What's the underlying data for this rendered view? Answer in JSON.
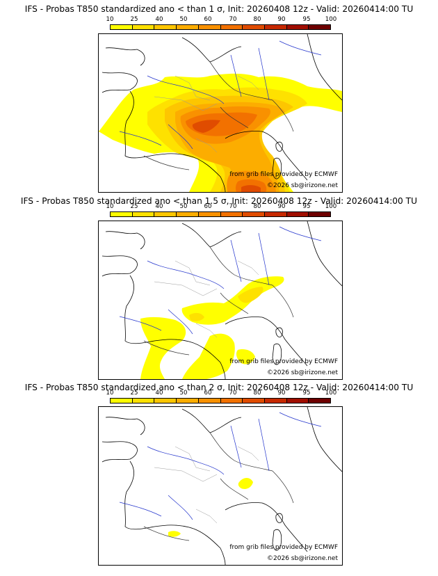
{
  "colorbar": {
    "ticks": [
      "10",
      "25",
      "40",
      "50",
      "60",
      "70",
      "80",
      "90",
      "95",
      "100"
    ],
    "colors": [
      "#ffff00",
      "#fee100",
      "#fdc600",
      "#fcad00",
      "#f99100",
      "#f27100",
      "#e04c00",
      "#c62900",
      "#a00e00",
      "#6e0000"
    ]
  },
  "panels": [
    {
      "title": "IFS - Probas T850  standardized ano < than 1 σ, Init: 20260408 12z - Valid: 20260414:00 TU",
      "credit_source": "from grib files provided by ECMWF",
      "credit_copyright": "©2026 sb@irizone.net"
    },
    {
      "title": "IFS - Probas T850  standardized ano < than 1.5 σ, Init: 20260408 12z - Valid: 20260414:00 TU",
      "credit_source": "from grib files provided by ECMWF",
      "credit_copyright": "©2026 sb@irizone.net"
    },
    {
      "title": "IFS - Probas T850  standardized ano < than 2 σ, Init: 20260408 12z - Valid: 20260414:00 TU",
      "credit_source": "from grib files provided by ECMWF",
      "credit_copyright": "©2026 sb@irizone.net"
    }
  ]
}
